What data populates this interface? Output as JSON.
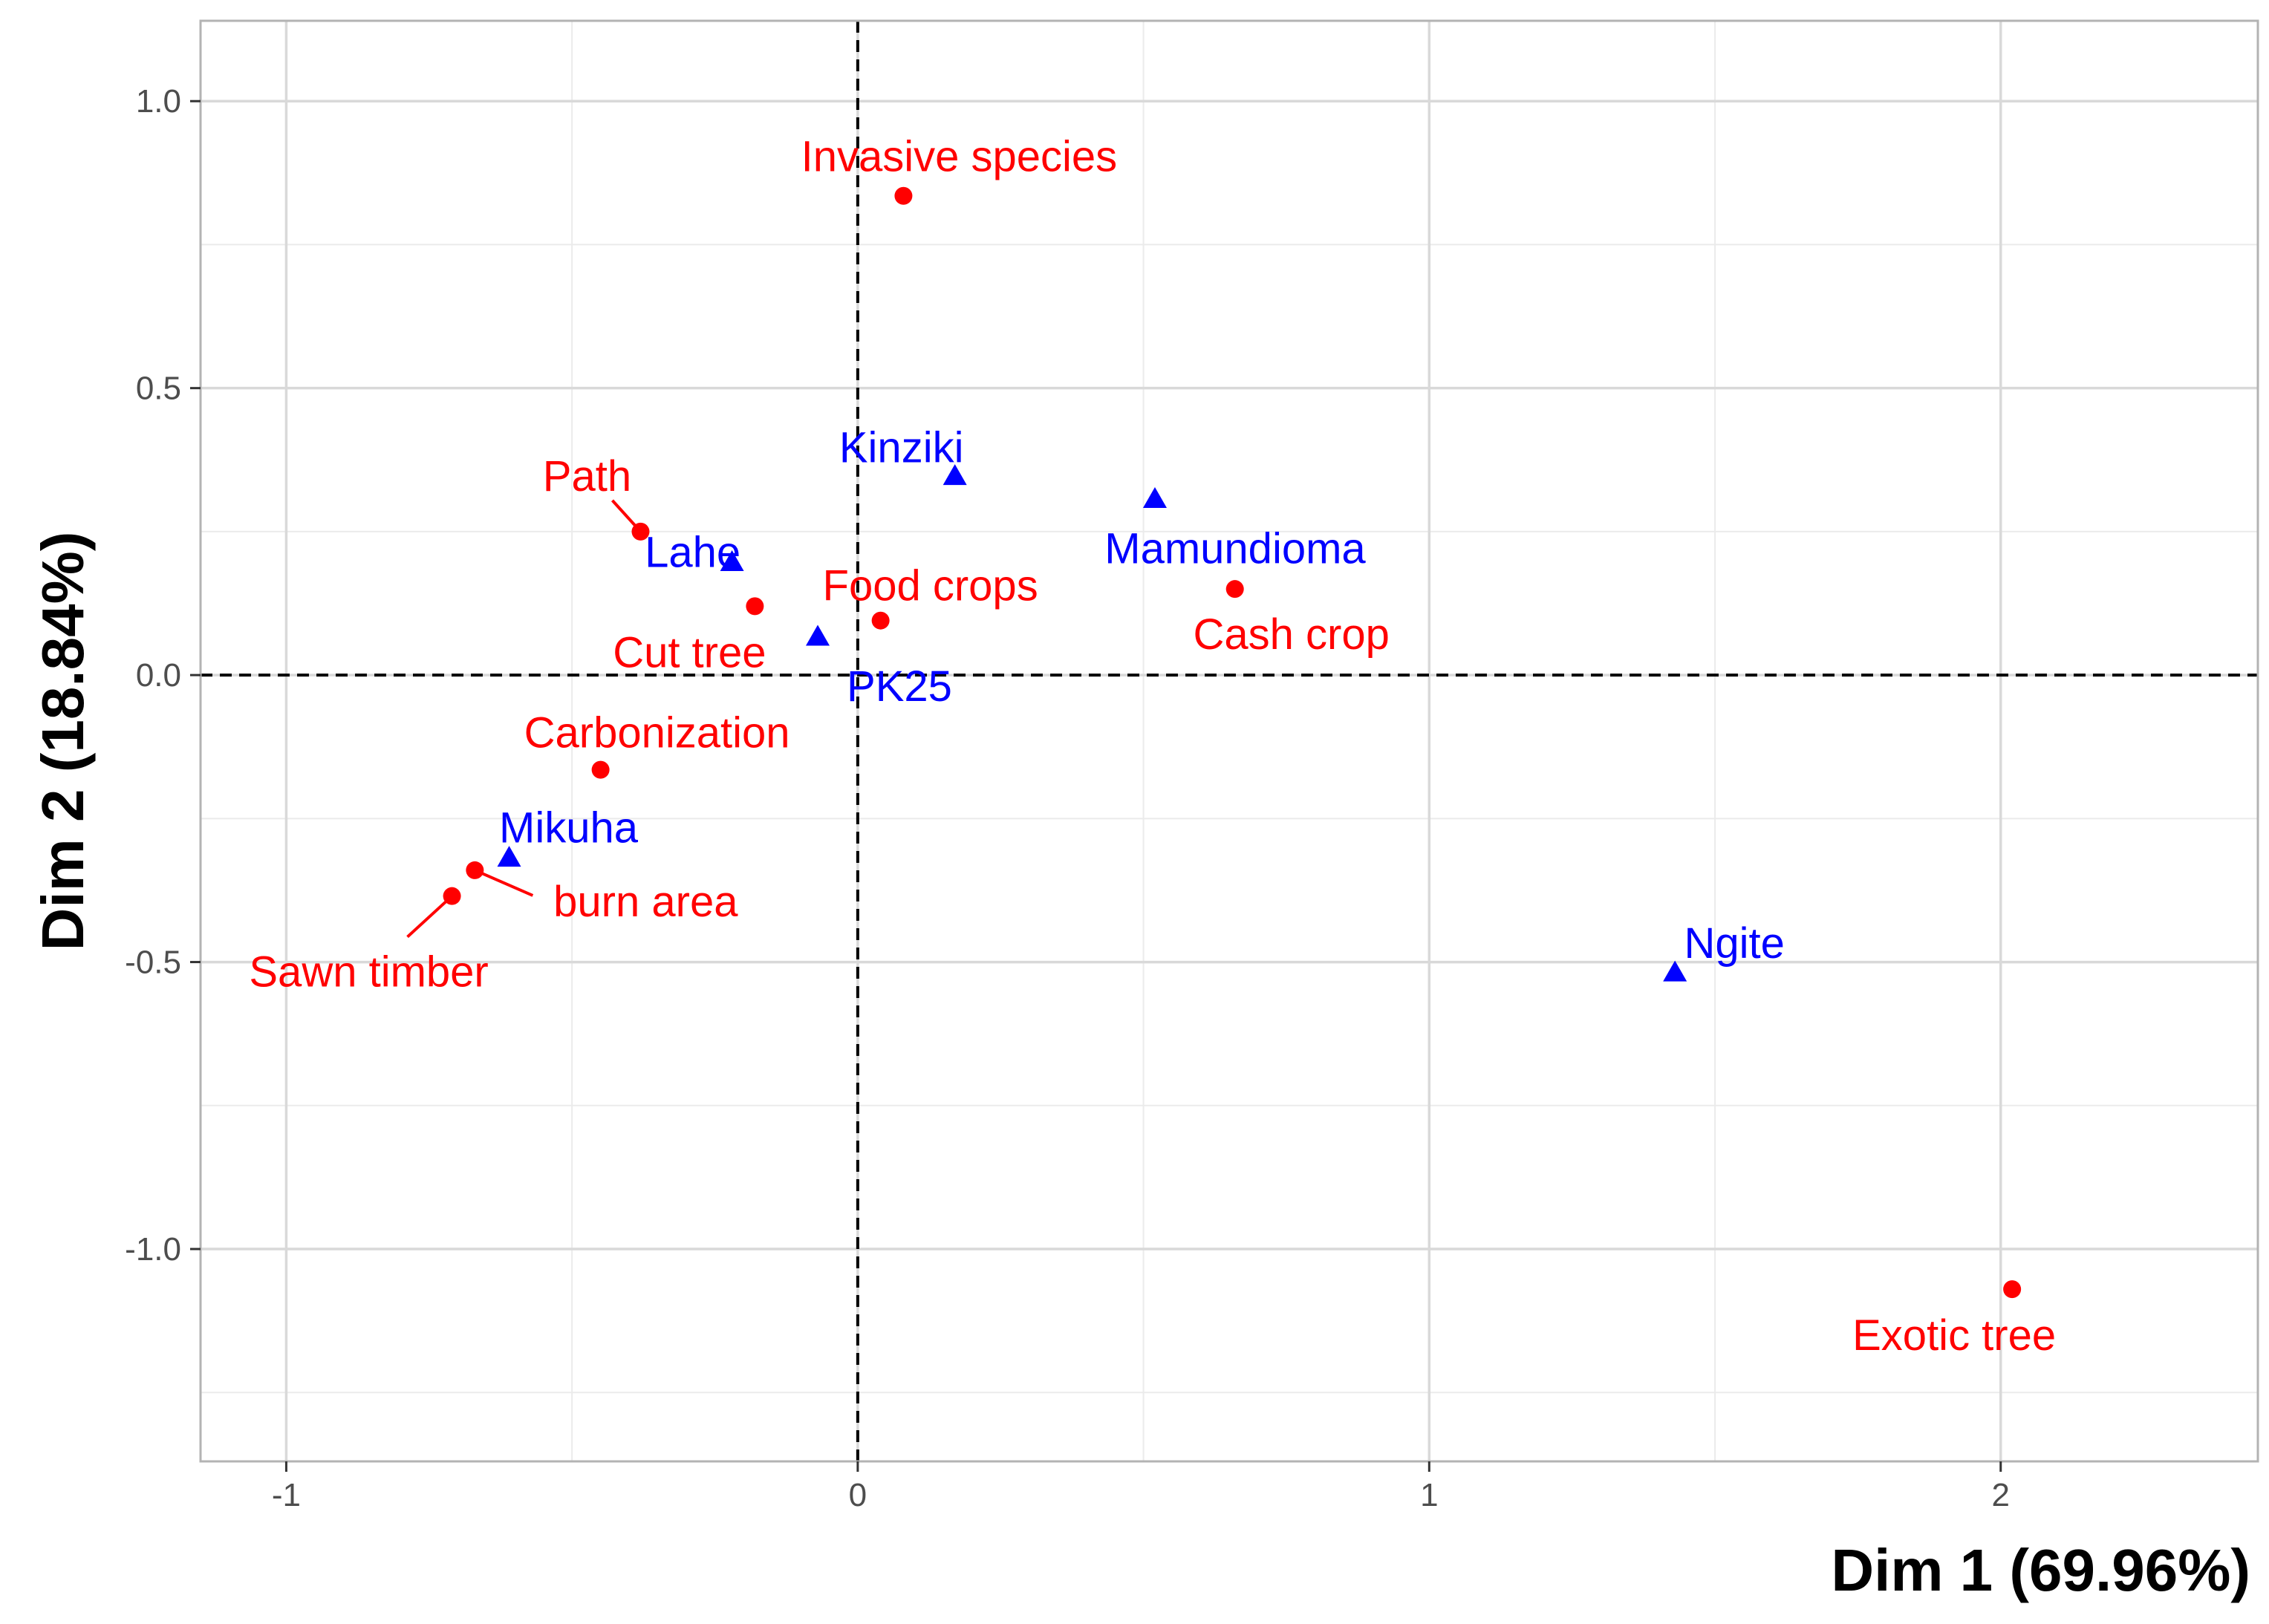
{
  "chart_data": {
    "type": "scatter",
    "title": "",
    "xlabel": "Dim 1 (69.96%)",
    "ylabel": "Dim 2 (18.84%)",
    "xlim": [
      -1.15,
      2.45
    ],
    "ylim": [
      -1.37,
      1.14
    ],
    "x_ticks": [
      -1,
      0,
      1,
      2
    ],
    "x_tick_labels": [
      "-1",
      "0",
      "1",
      "2"
    ],
    "y_ticks": [
      -1.0,
      -0.5,
      0.0,
      0.5,
      1.0
    ],
    "y_tick_labels": [
      "-1.0",
      "-0.5",
      "0.0",
      "0.5",
      "1.0"
    ],
    "grid": true,
    "reference_lines": {
      "x": 0,
      "y": 0,
      "style": "dashed"
    },
    "colors": {
      "activities": "#ff0000",
      "sites": "#0000ff"
    },
    "series": [
      {
        "marker": "circle",
        "color": "#ff0000",
        "points": [
          {
            "label": "Invasive species",
            "x": 0.08,
            "y": 0.835
          },
          {
            "label": "Path",
            "x": -0.38,
            "y": 0.25
          },
          {
            "label": "Cut tree",
            "x": -0.18,
            "y": 0.12
          },
          {
            "label": "Food crops",
            "x": 0.04,
            "y": 0.095
          },
          {
            "label": "Cash crop",
            "x": 0.66,
            "y": 0.15
          },
          {
            "label": "Carbonization",
            "x": -0.45,
            "y": -0.165
          },
          {
            "label": "burn area",
            "x": -0.67,
            "y": -0.34
          },
          {
            "label": "Sawn timber",
            "x": -0.71,
            "y": -0.385
          },
          {
            "label": "Exotic tree",
            "x": 2.02,
            "y": -1.07
          }
        ]
      },
      {
        "marker": "triangle",
        "color": "#0000ff",
        "points": [
          {
            "label": "Kinziki",
            "x": 0.17,
            "y": 0.345
          },
          {
            "label": "Mamundioma",
            "x": 0.52,
            "y": 0.305
          },
          {
            "label": "Lahe",
            "x": -0.22,
            "y": 0.195
          },
          {
            "label": "PK25",
            "x": -0.07,
            "y": 0.065
          },
          {
            "label": "Mikuha",
            "x": -0.61,
            "y": -0.32
          },
          {
            "label": "Ngite",
            "x": 1.43,
            "y": -0.52
          }
        ]
      }
    ]
  }
}
